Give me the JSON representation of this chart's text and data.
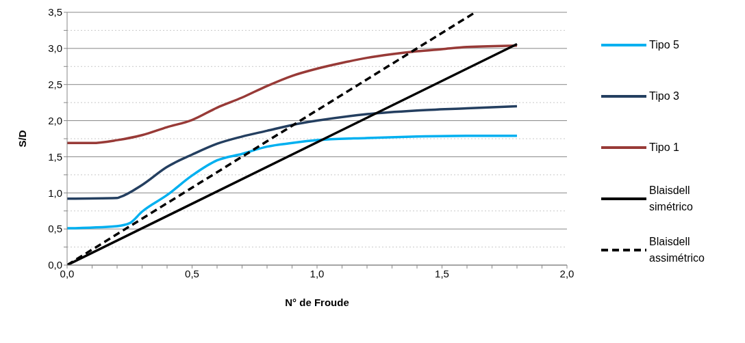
{
  "chart_data": {
    "type": "line",
    "xlabel": "N° de Froude",
    "ylabel": "S/D",
    "xlim": [
      0,
      2
    ],
    "ylim": [
      0,
      3.5
    ],
    "xticks": [
      {
        "value": 0,
        "label": "0,0"
      },
      {
        "value": 0.1,
        "label": null
      },
      {
        "value": 0.2,
        "label": null
      },
      {
        "value": 0.3,
        "label": null
      },
      {
        "value": 0.4,
        "label": null
      },
      {
        "value": 0.5,
        "label": "0,5"
      },
      {
        "value": 0.6,
        "label": null
      },
      {
        "value": 0.7,
        "label": null
      },
      {
        "value": 0.8,
        "label": null
      },
      {
        "value": 0.9,
        "label": null
      },
      {
        "value": 1,
        "label": "1,0"
      },
      {
        "value": 1.1,
        "label": null
      },
      {
        "value": 1.2,
        "label": null
      },
      {
        "value": 1.3,
        "label": null
      },
      {
        "value": 1.4,
        "label": null
      },
      {
        "value": 1.5,
        "label": "1,5"
      },
      {
        "value": 1.6,
        "label": null
      },
      {
        "value": 1.7,
        "label": null
      },
      {
        "value": 1.8,
        "label": null
      },
      {
        "value": 1.9,
        "label": null
      },
      {
        "value": 2,
        "label": "2,0"
      }
    ],
    "yticks": [
      {
        "value": 0,
        "label": "0,0"
      },
      {
        "value": 0.25,
        "label": null
      },
      {
        "value": 0.5,
        "label": "0,5"
      },
      {
        "value": 0.75,
        "label": null
      },
      {
        "value": 1,
        "label": "1,0"
      },
      {
        "value": 1.25,
        "label": null
      },
      {
        "value": 1.5,
        "label": "1,5"
      },
      {
        "value": 1.75,
        "label": null
      },
      {
        "value": 2,
        "label": "2,0"
      },
      {
        "value": 2.25,
        "label": null
      },
      {
        "value": 2.5,
        "label": "2,5"
      },
      {
        "value": 2.75,
        "label": null
      },
      {
        "value": 3,
        "label": "3,0"
      },
      {
        "value": 3.25,
        "label": null
      },
      {
        "value": 3.5,
        "label": "3,5"
      }
    ],
    "grid": "y",
    "legend": "right",
    "marker": "none",
    "series": [
      {
        "name": "Tipo 5",
        "color": "#00b0f0",
        "line_style": "solid",
        "x": [
          0,
          0.2,
          0.25,
          0.3,
          0.4,
          0.5,
          0.6,
          0.7,
          0.8,
          0.9,
          1.0,
          1.2,
          1.4,
          1.6,
          1.8
        ],
        "values": [
          0.51,
          0.54,
          0.58,
          0.74,
          0.97,
          1.24,
          1.45,
          1.54,
          1.64,
          1.69,
          1.73,
          1.76,
          1.78,
          1.79,
          1.79
        ]
      },
      {
        "name": "Tipo 3",
        "color": "#243f60",
        "line_style": "solid",
        "x": [
          0,
          0.2,
          0.21,
          0.3,
          0.4,
          0.5,
          0.6,
          0.7,
          0.8,
          0.9,
          1.0,
          1.2,
          1.4,
          1.6,
          1.8
        ],
        "values": [
          0.92,
          0.93,
          0.94,
          1.11,
          1.36,
          1.53,
          1.68,
          1.78,
          1.86,
          1.94,
          2.0,
          2.09,
          2.14,
          2.17,
          2.2
        ]
      },
      {
        "name": "Tipo 1",
        "color": "#983a37",
        "line_style": "solid",
        "x": [
          0,
          0.1,
          0.2,
          0.3,
          0.4,
          0.5,
          0.6,
          0.7,
          0.8,
          0.9,
          1.0,
          1.1,
          1.2,
          1.3,
          1.4,
          1.5,
          1.6,
          1.8
        ],
        "values": [
          1.69,
          1.69,
          1.73,
          1.8,
          1.91,
          2.01,
          2.18,
          2.32,
          2.48,
          2.62,
          2.72,
          2.8,
          2.87,
          2.92,
          2.96,
          2.99,
          3.02,
          3.04
        ]
      },
      {
        "name": "Blaisdell simétrico",
        "color": "#000000",
        "line_style": "solid",
        "x": [
          0,
          1.8
        ],
        "values": [
          0,
          3.06
        ]
      },
      {
        "name": "Blaisdell assimétrico",
        "color": "#000000",
        "line_style": "dashed",
        "x": [
          0,
          1.633
        ],
        "values": [
          0,
          3.5
        ]
      }
    ]
  }
}
